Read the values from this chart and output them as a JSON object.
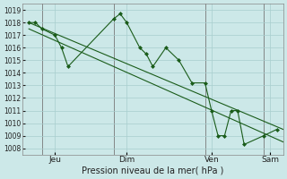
{
  "xlabel": "Pression niveau de la mer( hPa )",
  "background_color": "#cce8e8",
  "grid_color": "#a8cece",
  "line_color": "#1a5c1a",
  "ylim": [
    1007.5,
    1019.5
  ],
  "yticks": [
    1008,
    1009,
    1010,
    1011,
    1012,
    1013,
    1014,
    1015,
    1016,
    1017,
    1018,
    1019
  ],
  "xlim": [
    0,
    20
  ],
  "vline_positions": [
    1.5,
    7.0,
    14.0,
    18.5
  ],
  "xtick_pos_labels": [
    2.5,
    8.0,
    14.5,
    19.0
  ],
  "xtick_labels": [
    "Jeu",
    "Dim",
    "Ven",
    "Sam"
  ],
  "line1_x": [
    0.5,
    1.0,
    1.5,
    2.5,
    3.0,
    3.5,
    7.0,
    7.5,
    8.0,
    9.0,
    9.5,
    10.0,
    11.0,
    12.0,
    13.0,
    14.0,
    14.5,
    15.0,
    15.5,
    16.0,
    16.5,
    17.0,
    18.5,
    19.5
  ],
  "line1_y": [
    1018.0,
    1018.0,
    1017.5,
    1017.0,
    1016.0,
    1014.5,
    1018.3,
    1018.7,
    1018.0,
    1016.0,
    1015.5,
    1014.5,
    1016.0,
    1015.0,
    1013.2,
    1013.2,
    1011.0,
    1009.0,
    1009.0,
    1011.0,
    1011.0,
    1008.3,
    1009.0,
    1009.5
  ],
  "line2_x": [
    0.5,
    20.0
  ],
  "line2_y": [
    1018.0,
    1009.5
  ],
  "line3_x": [
    0.5,
    20.0
  ],
  "line3_y": [
    1017.5,
    1008.5
  ],
  "fig_bg": "#cce8e8"
}
